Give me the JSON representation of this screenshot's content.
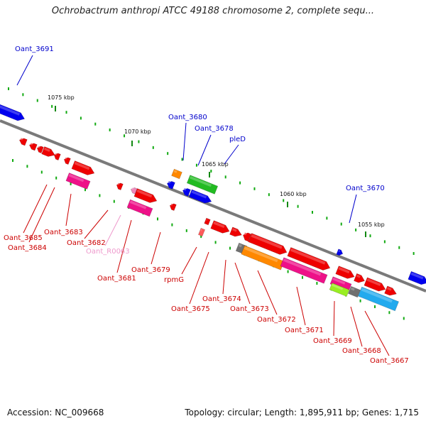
{
  "header": {
    "title": "Ochrobactrum anthropi ATCC 49188 chromosome 2, complete sequ..."
  },
  "footer": {
    "accession": "Accession: NC_009668",
    "topology": "Topology: circular; Length: 1,895,911 bp; Genes: 1,715"
  },
  "colors": {
    "cds": "#ee0000",
    "cds_light": "#ff5a5a",
    "plus": "#0000ee",
    "green": "#22bb22",
    "orange": "#ff8800",
    "magenta": "#ee1188",
    "pink_light": "#ee88bb",
    "gray": "#707070",
    "lime": "#99ee22",
    "cyan": "#22aaee",
    "label_red": "#cc0000",
    "label_blue": "#0000cc",
    "label_pink": "#ee99cc",
    "tick": "#11aa11",
    "backbone": "#7a7a7a"
  },
  "ruler": [
    {
      "label": "1075 kbp",
      "pos": 1075
    },
    {
      "label": "1070 kbp",
      "pos": 1070
    },
    {
      "label": "1065 kbp",
      "pos": 1065
    },
    {
      "label": "1060 kbp",
      "pos": 1060
    },
    {
      "label": "1055 kbp",
      "pos": 1055
    }
  ],
  "genes_top": [
    {
      "label": "Oant_3691"
    },
    {
      "label": "Oant_3680"
    },
    {
      "label": "Oant_3678"
    },
    {
      "label": "pleD"
    },
    {
      "label": "Oant_3670"
    }
  ],
  "genes_bottom": [
    {
      "label": "Oant_3685"
    },
    {
      "label": "Oant_3684"
    },
    {
      "label": "Oant_3683"
    },
    {
      "label": "Oant_3682"
    },
    {
      "label": "Oant_R0063"
    },
    {
      "label": "Oant_3681"
    },
    {
      "label": "Oant_3679"
    },
    {
      "label": "rpmG"
    },
    {
      "label": "Oant_3675"
    },
    {
      "label": "Oant_3674"
    },
    {
      "label": "Oant_3673"
    },
    {
      "label": "Oant_3672"
    },
    {
      "label": "Oant_3671"
    },
    {
      "label": "Oant_3669"
    },
    {
      "label": "Oant_3668"
    },
    {
      "label": "Oant_3667"
    }
  ]
}
